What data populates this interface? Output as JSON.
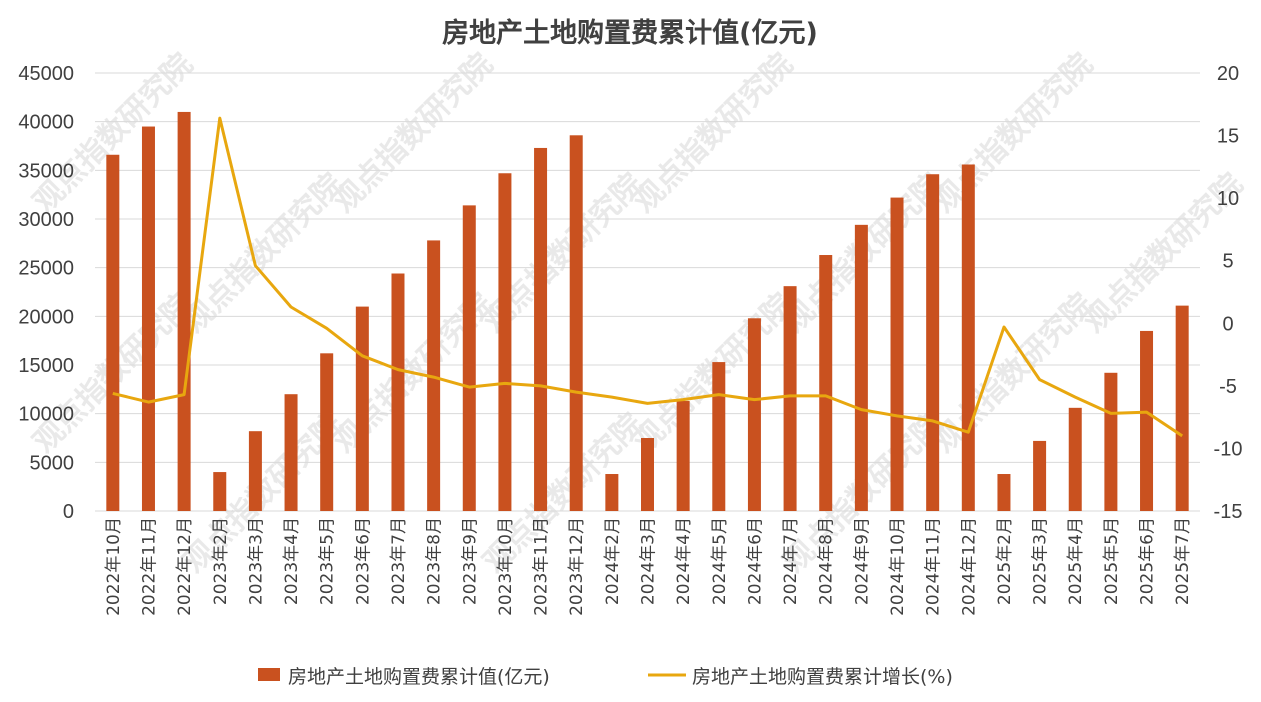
{
  "chart_data": {
    "type": "bar",
    "title": "房地产土地购置费累计值(亿元)",
    "watermark": "观点指数研究院",
    "categories": [
      "2022年10月",
      "2022年11月",
      "2022年12月",
      "2023年2月",
      "2023年3月",
      "2023年4月",
      "2023年5月",
      "2023年6月",
      "2023年7月",
      "2023年8月",
      "2023年9月",
      "2023年10月",
      "2023年11月",
      "2023年12月",
      "2024年2月",
      "2024年3月",
      "2024年4月",
      "2024年5月",
      "2024年6月",
      "2024年7月",
      "2024年8月",
      "2024年9月",
      "2024年10月",
      "2024年11月",
      "2024年12月",
      "2025年2月",
      "2025年3月",
      "2025年4月",
      "2025年5月",
      "2025年6月",
      "2025年7月"
    ],
    "series": [
      {
        "name": "房地产土地购置费累计值(亿元)",
        "type": "bar",
        "axis": "left",
        "color": "#C9511F",
        "values": [
          36600,
          39500,
          41000,
          4000,
          8200,
          12000,
          16200,
          21000,
          24400,
          27800,
          31400,
          34700,
          37300,
          38600,
          3800,
          7500,
          11300,
          15300,
          19800,
          23100,
          26300,
          29400,
          32200,
          34600,
          35600,
          3800,
          7200,
          10600,
          14200,
          18500,
          21100
        ]
      },
      {
        "name": "房地产土地购置费累计增长(%)",
        "type": "line",
        "axis": "right",
        "color": "#E8A70F",
        "values": [
          -5.6,
          -6.3,
          -5.7,
          16.4,
          4.6,
          1.3,
          -0.4,
          -2.6,
          -3.7,
          -4.3,
          -5.1,
          -4.8,
          -5.0,
          -5.5,
          -5.9,
          -6.4,
          -6.1,
          -5.7,
          -6.1,
          -5.8,
          -5.8,
          -6.9,
          -7.4,
          -7.8,
          -8.7,
          -0.3,
          -4.5,
          -5.9,
          -7.2,
          -7.1,
          -9.0
        ]
      }
    ],
    "y_left": {
      "min": 0,
      "max": 45000,
      "step": 5000
    },
    "y_right": {
      "min": -15,
      "max": 20,
      "step": 5
    },
    "grid": true,
    "legend_position": "bottom"
  }
}
